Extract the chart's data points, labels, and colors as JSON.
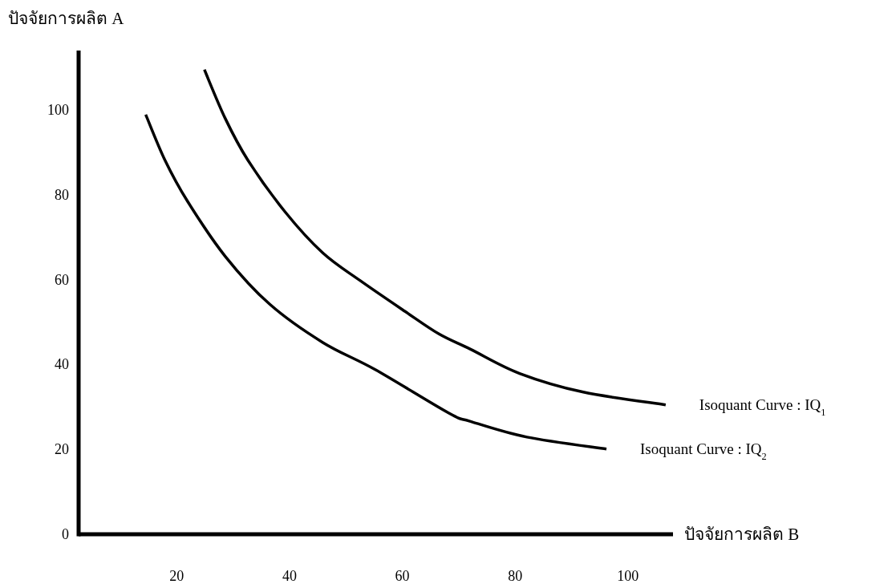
{
  "chart_data": {
    "type": "line",
    "xlabel": "ปัจจัยการผลิต B",
    "ylabel": "ปัจจัยการผลิต A",
    "xlim": [
      2.6,
      108
    ],
    "ylim": [
      0,
      114
    ],
    "xticks": [
      20,
      40,
      60,
      80,
      100
    ],
    "yticks": [
      0,
      20,
      40,
      60,
      80,
      100
    ],
    "line_style": "solid",
    "series": [
      {
        "name": "Isoquant Curve : IQ$_{1}$",
        "color": "#000000",
        "x": [
          24.9,
          28.6,
          32.6,
          39.2,
          45.9,
          52.5,
          60.5,
          66.5,
          72.1,
          80.8,
          92.1,
          106.7
        ],
        "values": [
          109.5,
          98,
          88.2,
          76,
          66.3,
          59.8,
          52.5,
          47.2,
          43.6,
          37.9,
          33.5,
          30.5
        ]
      },
      {
        "name": "Isoquant Curve : IQ$_{2}$",
        "color": "#000000",
        "x": [
          14.5,
          17.9,
          21.9,
          28.6,
          36.5,
          45.9,
          55.2,
          68.2,
          72.1,
          82.1,
          96.2
        ],
        "values": [
          98.9,
          88.2,
          78.5,
          65.5,
          54.2,
          45.2,
          38.8,
          28.6,
          26.6,
          22.9,
          20.1
        ]
      }
    ]
  }
}
